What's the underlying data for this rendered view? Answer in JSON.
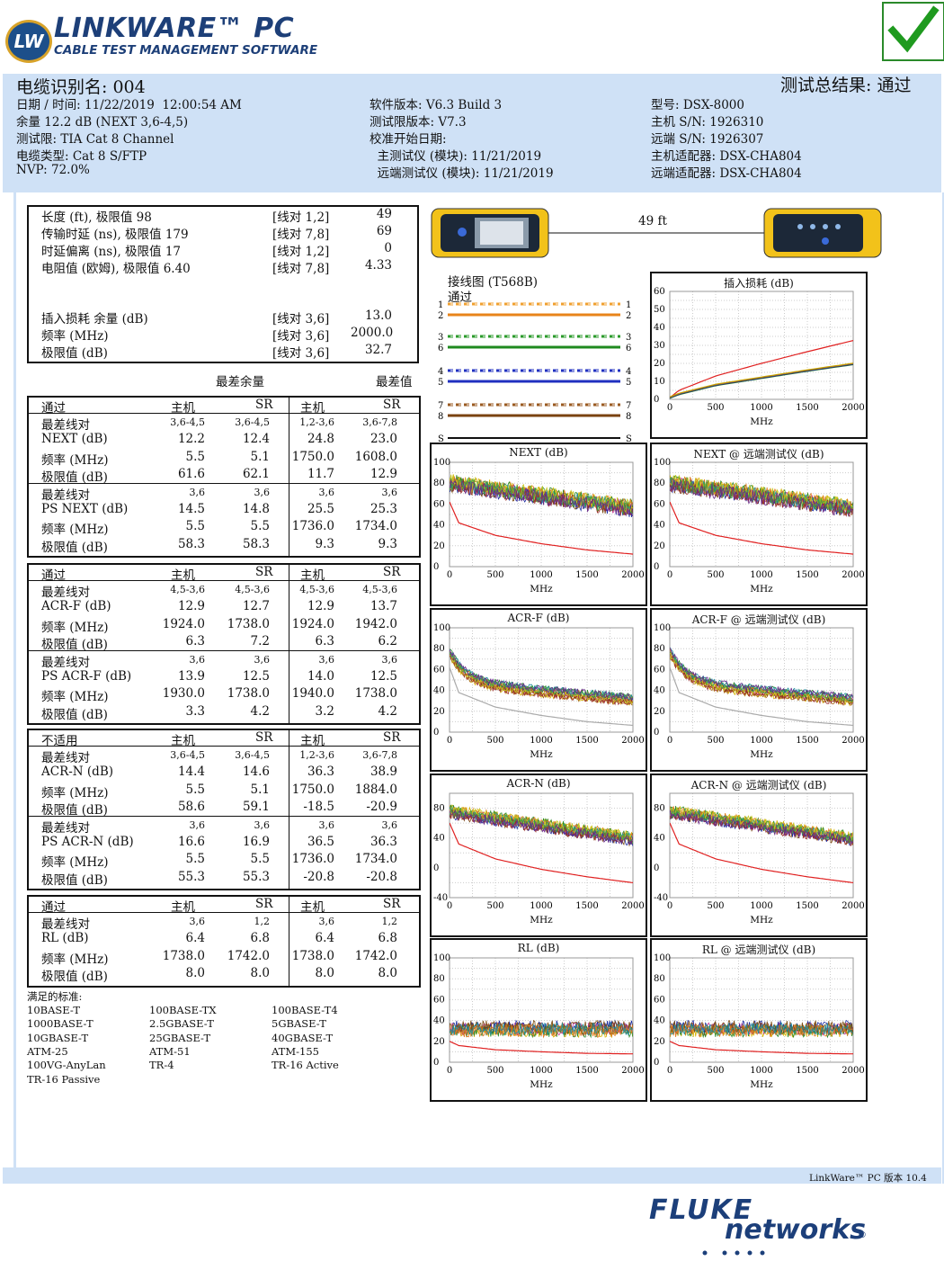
{
  "header": {
    "logo_badge": "LW",
    "logo_title": "LINKWARE™ PC",
    "logo_subtitle": "CABLE TEST MANAGEMENT SOFTWARE",
    "pass_icon": "checkmark-icon"
  },
  "info": {
    "cable_id": "电缆识别名: 004",
    "result": "测试总结果: 通过",
    "col1": [
      "日期 / 时间: 11/22/2019  12:00:54 AM",
      "余量 12.2 dB (NEXT 3,6-4,5)",
      "测试限: TIA Cat 8 Channel",
      "电缆类型: Cat 8 S/FTP",
      "NVP: 72.0%"
    ],
    "col2": [
      "软件版本: V6.3 Build 3",
      "测试限版本: V7.3",
      "校准开始日期:",
      "  主测试仪 (模块): 11/21/2019",
      "  远端测试仪 (模块): 11/21/2019"
    ],
    "col3": [
      "型号: DSX-8000",
      "主机 S/N: 1926310",
      "远端 S/N: 1926307",
      "主机适配器: DSX-CHA804",
      "远端适配器: DSX-CHA804"
    ]
  },
  "summary": {
    "rows": [
      [
        "长度 (ft), 极限值 98",
        "[线对 1,2]",
        "49"
      ],
      [
        "传输时延 (ns), 极限值 179",
        "[线对 7,8]",
        "69"
      ],
      [
        "时延偏离 (ns), 极限值 17",
        "[线对 1,2]",
        "0"
      ],
      [
        "电阻值 (欧姆), 极限值 6.40",
        "[线对 7,8]",
        "4.33"
      ],
      [
        "插入损耗 余量 (dB)",
        "[线对 3,6]",
        "13.0"
      ],
      [
        "频率 (MHz)",
        "[线对 3,6]",
        "2000.0"
      ],
      [
        "极限值 (dB)",
        "[线对 3,6]",
        "32.7"
      ]
    ],
    "worst_margin": "最差余量",
    "worst_value": "最差值"
  },
  "tables": [
    {
      "header": [
        "通过",
        "主机",
        "SR",
        "主机",
        "SR"
      ],
      "rows": [
        [
          "最差线对",
          "3,6-4,5",
          "3,6-4,5",
          "1,2-3,6",
          "3,6-7,8"
        ],
        [
          "NEXT (dB)",
          "12.2",
          "12.4",
          "24.8",
          "23.0"
        ],
        [
          "频率 (MHz)",
          "5.5",
          "5.1",
          "1750.0",
          "1608.0"
        ],
        [
          "极限值 (dB)",
          "61.6",
          "62.1",
          "11.7",
          "12.9"
        ],
        [
          "最差线对",
          "3,6",
          "3,6",
          "3,6",
          "3,6"
        ],
        [
          "PS NEXT (dB)",
          "14.5",
          "14.8",
          "25.5",
          "25.3"
        ],
        [
          "频率 (MHz)",
          "5.5",
          "5.5",
          "1736.0",
          "1734.0"
        ],
        [
          "极限值 (dB)",
          "58.3",
          "58.3",
          "9.3",
          "9.3"
        ]
      ]
    },
    {
      "header": [
        "通过",
        "主机",
        "SR",
        "主机",
        "SR"
      ],
      "rows": [
        [
          "最差线对",
          "4,5-3,6",
          "4,5-3,6",
          "4,5-3,6",
          "4,5-3,6"
        ],
        [
          "ACR-F (dB)",
          "12.9",
          "12.7",
          "12.9",
          "13.7"
        ],
        [
          "频率 (MHz)",
          "1924.0",
          "1738.0",
          "1924.0",
          "1942.0"
        ],
        [
          "极限值 (dB)",
          "6.3",
          "7.2",
          "6.3",
          "6.2"
        ],
        [
          "最差线对",
          "3,6",
          "3,6",
          "3,6",
          "3,6"
        ],
        [
          "PS ACR-F (dB)",
          "13.9",
          "12.5",
          "14.0",
          "12.5"
        ],
        [
          "频率 (MHz)",
          "1930.0",
          "1738.0",
          "1940.0",
          "1738.0"
        ],
        [
          "极限值 (dB)",
          "3.3",
          "4.2",
          "3.2",
          "4.2"
        ]
      ]
    },
    {
      "header": [
        "不适用",
        "主机",
        "SR",
        "主机",
        "SR"
      ],
      "rows": [
        [
          "最差线对",
          "3,6-4,5",
          "3,6-4,5",
          "1,2-3,6",
          "3,6-7,8"
        ],
        [
          "ACR-N (dB)",
          "14.4",
          "14.6",
          "36.3",
          "38.9"
        ],
        [
          "频率 (MHz)",
          "5.5",
          "5.1",
          "1750.0",
          "1884.0"
        ],
        [
          "极限值 (dB)",
          "58.6",
          "59.1",
          "-18.5",
          "-20.9"
        ],
        [
          "最差线对",
          "3,6",
          "3,6",
          "3,6",
          "3,6"
        ],
        [
          "PS ACR-N (dB)",
          "16.6",
          "16.9",
          "36.5",
          "36.3"
        ],
        [
          "频率 (MHz)",
          "5.5",
          "5.5",
          "1736.0",
          "1734.0"
        ],
        [
          "极限值 (dB)",
          "55.3",
          "55.3",
          "-20.8",
          "-20.8"
        ]
      ]
    },
    {
      "header": [
        "通过",
        "主机",
        "SR",
        "主机",
        "SR"
      ],
      "rows": [
        [
          "最差线对",
          "3,6",
          "1,2",
          "3,6",
          "1,2"
        ],
        [
          "RL (dB)",
          "6.4",
          "6.8",
          "6.4",
          "6.8"
        ],
        [
          "频率 (MHz)",
          "1738.0",
          "1742.0",
          "1738.0",
          "1742.0"
        ],
        [
          "极限值 (dB)",
          "8.0",
          "8.0",
          "8.0",
          "8.0"
        ]
      ]
    }
  ],
  "standards": {
    "title": "满足的标准:",
    "items": [
      "10BASE-T",
      "100BASE-TX",
      "100BASE-T4",
      "1000BASE-T",
      "2.5GBASE-T",
      "5GBASE-T",
      "10GBASE-T",
      "25GBASE-T",
      "40GBASE-T",
      "ATM-25",
      "ATM-51",
      "ATM-155",
      "100VG-AnyLan",
      "TR-4",
      "TR-16 Active",
      "TR-16 Passive"
    ]
  },
  "devices": {
    "length_label": "49 ft"
  },
  "wiremap": {
    "title": "接线图 (T568B)",
    "status": "通过",
    "pins_left": [
      "1",
      "2",
      "3",
      "6",
      "4",
      "5",
      "7",
      "8",
      "S"
    ],
    "pins_right": [
      "1",
      "2",
      "3",
      "6",
      "4",
      "5",
      "7",
      "8",
      "S"
    ],
    "colors": [
      "#f0a030",
      "#e8841a",
      "#2a9a2a",
      "#1f8a1f",
      "#2030c0",
      "#2030c0",
      "#9a5a20",
      "#7a4210",
      "#111111"
    ]
  },
  "footer": {
    "version": "LinkWare™ PC 版本 10.4",
    "brand_top": "FLUKE",
    "brand_bottom": "networks",
    "brand_mark": "®"
  },
  "chart_data": [
    {
      "type": "line",
      "title": "插入损耗 (dB)",
      "xlabel": "MHz",
      "ylabel": "",
      "xlim": [
        0,
        2000
      ],
      "ylim": [
        0,
        60
      ],
      "xticks": [
        "0",
        "500",
        "1000",
        "1500",
        "2000"
      ],
      "yticks": [
        "0",
        "10",
        "20",
        "30",
        "40",
        "50",
        "60"
      ],
      "series": [
        {
          "kind": "limit",
          "color": "#e02020",
          "values": [
            [
              1,
              1
            ],
            [
              100,
              5
            ],
            [
              500,
              13
            ],
            [
              1000,
              20
            ],
            [
              1500,
              26.5
            ],
            [
              2000,
              32.7
            ]
          ]
        },
        {
          "kind": "measured",
          "color": "#2a7a2a",
          "values": [
            [
              1,
              1
            ],
            [
              100,
              3
            ],
            [
              500,
              8
            ],
            [
              1000,
              12
            ],
            [
              1500,
              16
            ],
            [
              2000,
              19.7
            ]
          ]
        }
      ]
    },
    {
      "type": "line",
      "title": "NEXT (dB)",
      "xlabel": "MHz",
      "xlim": [
        0,
        2000
      ],
      "ylim": [
        0,
        100
      ],
      "xticks": [
        "0",
        "500",
        "1000",
        "1500",
        "2000"
      ],
      "yticks": [
        "0",
        "20",
        "40",
        "60",
        "80",
        "100"
      ],
      "pattern": "next",
      "limit": [
        [
          1,
          62
        ],
        [
          100,
          42
        ],
        [
          500,
          30
        ],
        [
          1000,
          22
        ],
        [
          1500,
          16
        ],
        [
          2000,
          12
        ]
      ]
    },
    {
      "type": "line",
      "title": "NEXT @ 远端测试仪 (dB)",
      "xlabel": "MHz",
      "xlim": [
        0,
        2000
      ],
      "ylim": [
        0,
        100
      ],
      "xticks": [
        "0",
        "500",
        "1000",
        "1500",
        "2000"
      ],
      "yticks": [
        "0",
        "20",
        "40",
        "60",
        "80",
        "100"
      ],
      "pattern": "next",
      "limit": [
        [
          1,
          62
        ],
        [
          100,
          42
        ],
        [
          500,
          30
        ],
        [
          1000,
          22
        ],
        [
          1500,
          16
        ],
        [
          2000,
          12
        ]
      ]
    },
    {
      "type": "line",
      "title": "ACR-F (dB)",
      "xlabel": "MHz",
      "xlim": [
        0,
        2000
      ],
      "ylim": [
        0,
        100
      ],
      "xticks": [
        "0",
        "500",
        "1000",
        "1500",
        "2000"
      ],
      "yticks": [
        "0",
        "20",
        "40",
        "60",
        "80",
        "100"
      ],
      "pattern": "acrf",
      "limit": [
        [
          1,
          62
        ],
        [
          100,
          38
        ],
        [
          500,
          24
        ],
        [
          1000,
          16
        ],
        [
          1500,
          10
        ],
        [
          2000,
          6.5
        ]
      ],
      "limit_color": "#aaaaaa"
    },
    {
      "type": "line",
      "title": "ACR-F @ 远端测试仪 (dB)",
      "xlabel": "MHz",
      "xlim": [
        0,
        2000
      ],
      "ylim": [
        0,
        100
      ],
      "xticks": [
        "0",
        "500",
        "1000",
        "1500",
        "2000"
      ],
      "yticks": [
        "0",
        "20",
        "40",
        "60",
        "80",
        "100"
      ],
      "pattern": "acrf",
      "limit": [
        [
          1,
          62
        ],
        [
          100,
          38
        ],
        [
          500,
          24
        ],
        [
          1000,
          16
        ],
        [
          1500,
          10
        ],
        [
          2000,
          6.5
        ]
      ],
      "limit_color": "#aaaaaa"
    },
    {
      "type": "line",
      "title": "ACR-N (dB)",
      "xlabel": "MHz",
      "xlim": [
        0,
        2000
      ],
      "ylim": [
        -40,
        100
      ],
      "xticks": [
        "0",
        "500",
        "1000",
        "1500",
        "2000"
      ],
      "yticks": [
        "-40",
        "0",
        "40",
        "80"
      ],
      "pattern": "acrn",
      "limit": [
        [
          1,
          60
        ],
        [
          100,
          32
        ],
        [
          500,
          12
        ],
        [
          1000,
          -2
        ],
        [
          1500,
          -12
        ],
        [
          2000,
          -20
        ]
      ]
    },
    {
      "type": "line",
      "title": "ACR-N @ 远端测试仪 (dB)",
      "xlabel": "MHz",
      "xlim": [
        0,
        2000
      ],
      "ylim": [
        -40,
        100
      ],
      "xticks": [
        "0",
        "500",
        "1000",
        "1500",
        "2000"
      ],
      "yticks": [
        "-40",
        "0",
        "40",
        "80"
      ],
      "pattern": "acrn",
      "limit": [
        [
          1,
          60
        ],
        [
          100,
          32
        ],
        [
          500,
          12
        ],
        [
          1000,
          -2
        ],
        [
          1500,
          -12
        ],
        [
          2000,
          -20
        ]
      ]
    },
    {
      "type": "line",
      "title": "RL (dB)",
      "xlabel": "MHz",
      "xlim": [
        0,
        2000
      ],
      "ylim": [
        0,
        100
      ],
      "xticks": [
        "0",
        "500",
        "1000",
        "1500",
        "2000"
      ],
      "yticks": [
        "0",
        "20",
        "40",
        "60",
        "80",
        "100"
      ],
      "pattern": "rl",
      "limit": [
        [
          1,
          20
        ],
        [
          100,
          16
        ],
        [
          500,
          12
        ],
        [
          1000,
          10
        ],
        [
          1500,
          8.5
        ],
        [
          2000,
          8
        ]
      ]
    },
    {
      "type": "line",
      "title": "RL @ 远端测试仪 (dB)",
      "xlabel": "MHz",
      "xlim": [
        0,
        2000
      ],
      "ylim": [
        0,
        100
      ],
      "xticks": [
        "0",
        "500",
        "1000",
        "1500",
        "2000"
      ],
      "yticks": [
        "0",
        "20",
        "40",
        "60",
        "80",
        "100"
      ],
      "pattern": "rl",
      "limit": [
        [
          1,
          20
        ],
        [
          100,
          16
        ],
        [
          500,
          12
        ],
        [
          1000,
          10
        ],
        [
          1500,
          8.5
        ],
        [
          2000,
          8
        ]
      ]
    }
  ]
}
